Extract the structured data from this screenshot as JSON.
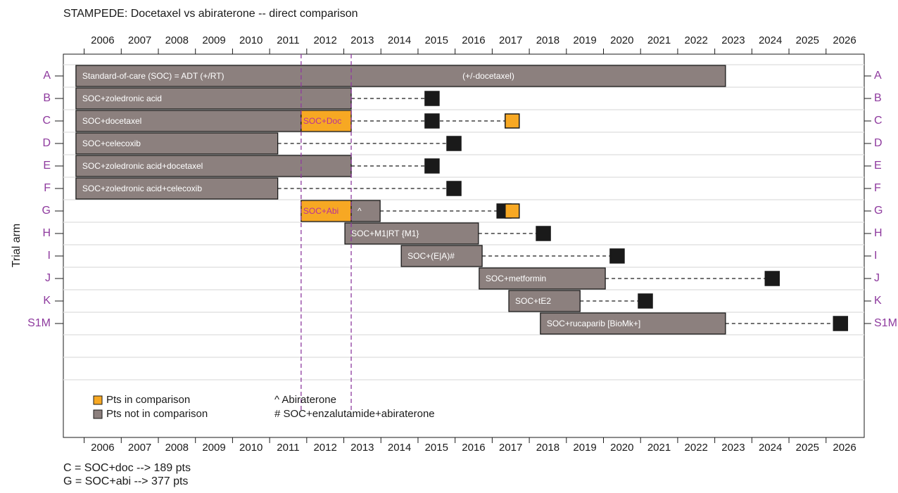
{
  "chart_data": {
    "type": "gantt",
    "title": "STAMPEDE: Docetaxel vs abiraterone -- direct comparison",
    "ylabel": "Trial arm",
    "xlim": [
      2004.94,
      2026.53
    ],
    "xticks": [
      2006,
      2007,
      2008,
      2009,
      2010,
      2011,
      2012,
      2013,
      2014,
      2015,
      2016,
      2017,
      2018,
      2019,
      2020,
      2021,
      2022,
      2023,
      2024,
      2025,
      2026
    ],
    "comparison_lines": [
      2011.35,
      2012.7
    ],
    "comparison_line_color": "#8e3a9e",
    "rows": [
      {
        "label": "A",
        "segments": [
          {
            "start": 2005.28,
            "end": 2022.79,
            "color": "#8c807e",
            "label": "Standard-of-care (SOC) = ADT (+/RT)"
          }
        ],
        "note": "(+/-docetaxel)",
        "markers": []
      },
      {
        "label": "B",
        "segments": [
          {
            "start": 2005.28,
            "end": 2012.7,
            "color": "#8c807e",
            "label": "SOC+zoledronic acid"
          }
        ],
        "markers": [
          {
            "x": 2014.88,
            "color": "#1a1a1a"
          }
        ]
      },
      {
        "label": "C",
        "segments": [
          {
            "start": 2005.28,
            "end": 2011.35,
            "color": "#8c807e",
            "label": "SOC+docetaxel"
          },
          {
            "start": 2011.35,
            "end": 2012.7,
            "color": "#f7a823",
            "label": "SOC+Doc"
          }
        ],
        "markers": [
          {
            "x": 2014.88,
            "color": "#1a1a1a"
          },
          {
            "x": 2017.04,
            "color": "#f7a823"
          }
        ]
      },
      {
        "label": "D",
        "segments": [
          {
            "start": 2005.28,
            "end": 2010.72,
            "color": "#8c807e",
            "label": "SOC+celecoxib"
          }
        ],
        "markers": [
          {
            "x": 2015.47,
            "color": "#1a1a1a"
          }
        ]
      },
      {
        "label": "E",
        "segments": [
          {
            "start": 2005.28,
            "end": 2012.7,
            "color": "#8c807e",
            "label": "SOC+zoledronic acid+docetaxel"
          }
        ],
        "markers": [
          {
            "x": 2014.88,
            "color": "#1a1a1a"
          }
        ]
      },
      {
        "label": "F",
        "segments": [
          {
            "start": 2005.28,
            "end": 2010.72,
            "color": "#8c807e",
            "label": "SOC+zoledronic acid+celecoxib"
          }
        ],
        "markers": [
          {
            "x": 2015.47,
            "color": "#1a1a1a"
          }
        ]
      },
      {
        "label": "G",
        "segments": [
          {
            "start": 2011.35,
            "end": 2012.7,
            "color": "#f7a823",
            "label": "SOC+Abi"
          },
          {
            "start": 2012.7,
            "end": 2013.48,
            "color": "#8c807e",
            "label": "^"
          }
        ],
        "markers": [
          {
            "x": 2016.82,
            "color": "#1a1a1a"
          },
          {
            "x": 2017.04,
            "color": "#f7a823"
          }
        ]
      },
      {
        "label": "H",
        "segments": [
          {
            "start": 2012.53,
            "end": 2016.13,
            "color": "#8c807e",
            "label": "SOC+M1|RT {M1}"
          }
        ],
        "markers": [
          {
            "x": 2017.88,
            "color": "#1a1a1a"
          }
        ]
      },
      {
        "label": "I",
        "segments": [
          {
            "start": 2014.05,
            "end": 2016.23,
            "color": "#8c807e",
            "label": "SOC+(E|A)#"
          }
        ],
        "markers": [
          {
            "x": 2019.87,
            "color": "#1a1a1a"
          }
        ]
      },
      {
        "label": "J",
        "segments": [
          {
            "start": 2016.15,
            "end": 2019.55,
            "color": "#8c807e",
            "label": "SOC+metformin"
          }
        ],
        "markers": [
          {
            "x": 2024.05,
            "color": "#1a1a1a"
          }
        ]
      },
      {
        "label": "K",
        "segments": [
          {
            "start": 2016.95,
            "end": 2018.87,
            "color": "#8c807e",
            "label": "SOC+tE2"
          }
        ],
        "markers": [
          {
            "x": 2020.63,
            "color": "#1a1a1a"
          }
        ]
      },
      {
        "label": "S1M",
        "segments": [
          {
            "start": 2017.8,
            "end": 2022.79,
            "color": "#8c807e",
            "label": "SOC+rucaparib [BioMk+]"
          }
        ],
        "markers": [
          {
            "x": 2025.89,
            "color": "#1a1a1a"
          }
        ]
      }
    ],
    "legend": [
      {
        "name": "Pts in comparison",
        "color": "#f7a823"
      },
      {
        "name": "Pts not in comparison",
        "color": "#8c807e"
      }
    ],
    "notes": [
      "^ Abiraterone",
      "# SOC+enzalutamide+abiraterone"
    ],
    "footnotes": [
      "C = SOC+doc --> 189 pts",
      "G = SOC+abi --> 377 pts"
    ]
  }
}
